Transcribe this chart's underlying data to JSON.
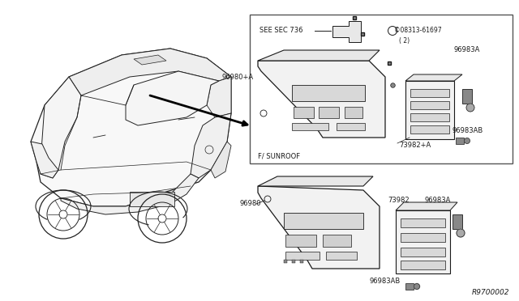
{
  "bg_color": "#ffffff",
  "line_color": "#1a1a1a",
  "text_color": "#1a1a1a",
  "fig_width": 6.4,
  "fig_height": 3.72,
  "dpi": 100,
  "diagram_number": "R9700002",
  "labels": {
    "see_sec": "SEE SEC 736",
    "f_sunroof": "F/ SUNROOF",
    "p96980A": "96980+A",
    "p73982A": "73982+A",
    "p96983A": "96983A",
    "p96983AB": "96983AB",
    "p08313": "©08313-61697",
    "p08313_2": "( 2)",
    "p96980": "96980",
    "p73982": "73982",
    "p96983A_low": "96983A",
    "p96983AB_low": "96983AB"
  }
}
